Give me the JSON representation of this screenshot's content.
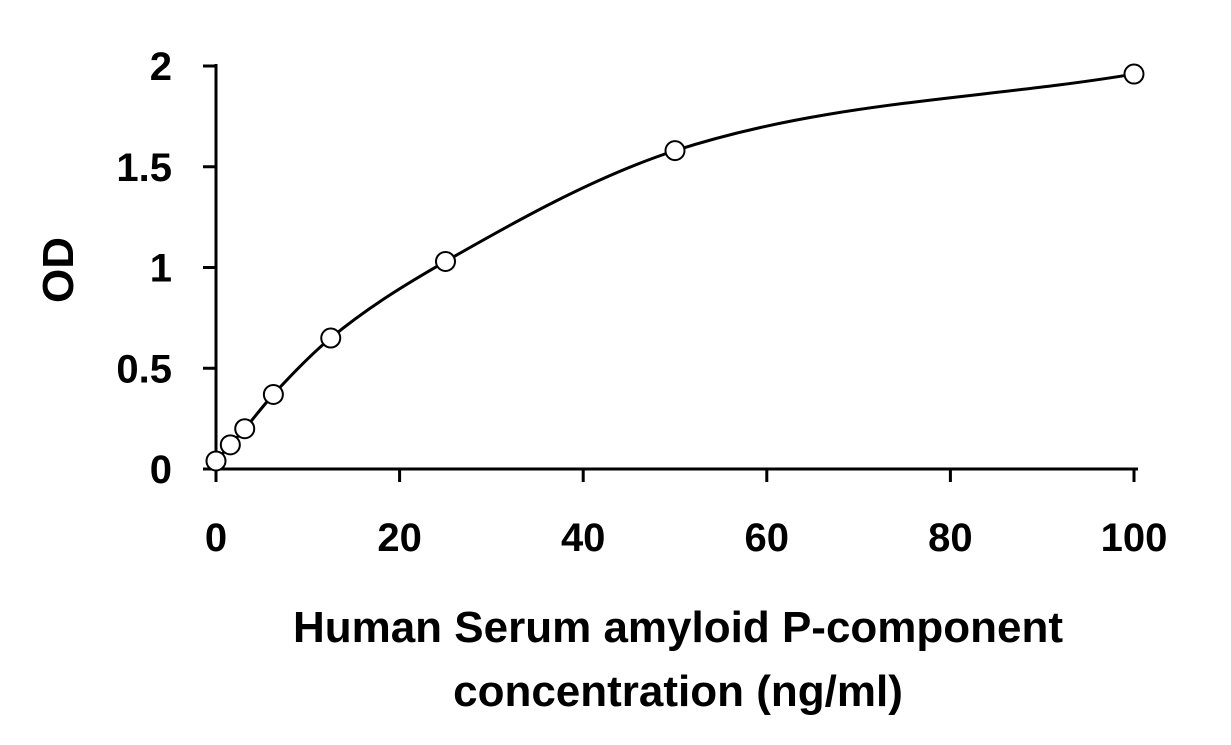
{
  "chart_data": {
    "type": "scatter",
    "title": "",
    "xlabel_lines": [
      "Human Serum amyloid P-component",
      "concentration (ng/ml)"
    ],
    "ylabel": "OD",
    "xlim": [
      0,
      100
    ],
    "ylim": [
      0,
      2
    ],
    "xticks": [
      0,
      20,
      40,
      60,
      80,
      100
    ],
    "xtick_labels": [
      "0",
      "20",
      "40",
      "60",
      "80",
      "100"
    ],
    "yticks": [
      0,
      0.5,
      1,
      1.5,
      2
    ],
    "ytick_labels": [
      "0",
      "0.5",
      "1",
      "1.5",
      "2"
    ],
    "grid": false,
    "legend": "none",
    "series": [
      {
        "x": [
          0,
          1.56,
          3.13,
          6.25,
          12.5,
          25,
          50,
          100
        ],
        "y": [
          0.04,
          0.12,
          0.2,
          0.37,
          0.65,
          1.03,
          1.58,
          1.96
        ],
        "marker": "open-circle",
        "fit_curve": true
      }
    ],
    "colors": {
      "line": "#000000",
      "marker_edge": "#000000",
      "marker_fill": "#ffffff"
    }
  }
}
